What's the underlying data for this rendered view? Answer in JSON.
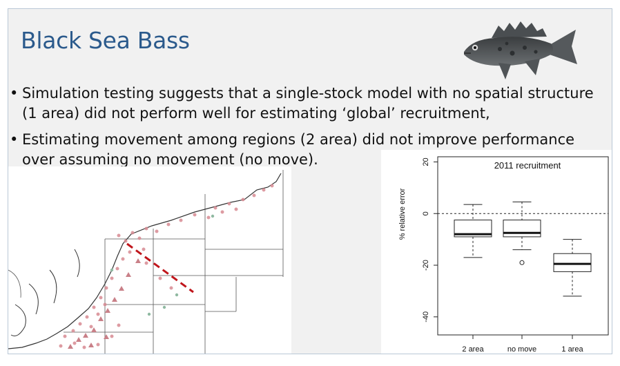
{
  "slide": {
    "title": "Black Sea Bass",
    "bullets": [
      "Simulation testing suggests that a single-stock model with no spatial structure (1 area) did not perform well for estimating ‘global’ recruitment,",
      "Estimating movement among regions (2 area) did not improve performance over assuming no movement (no move)."
    ],
    "bullet_glyph": "•",
    "image_fish": "black-sea-bass-fish",
    "image_map": "survey-map-northeast-us-coast"
  },
  "chart_data": {
    "type": "boxplot",
    "title": "2011 recruitment",
    "ylabel": "% relative error",
    "xlabel": "",
    "ylim": [
      -47,
      22
    ],
    "yticks": [
      20,
      0,
      -20,
      -40
    ],
    "ytick_labels": [
      "20",
      "0",
      "-20",
      "-40"
    ],
    "reference_line": 0,
    "categories": [
      "2 area",
      "no move",
      "1 area"
    ],
    "boxes": [
      {
        "whisker_low": -17,
        "q1": -9,
        "median": -8,
        "q3": -2.5,
        "whisker_high": 3.5,
        "outliers": []
      },
      {
        "whisker_low": -14,
        "q1": -9,
        "median": -7.5,
        "q3": -2.5,
        "whisker_high": 4.5,
        "outliers": [
          -19
        ]
      },
      {
        "whisker_low": -32,
        "q1": -22.5,
        "median": -19.5,
        "q3": -15.5,
        "whisker_high": -10,
        "outliers": []
      }
    ]
  }
}
